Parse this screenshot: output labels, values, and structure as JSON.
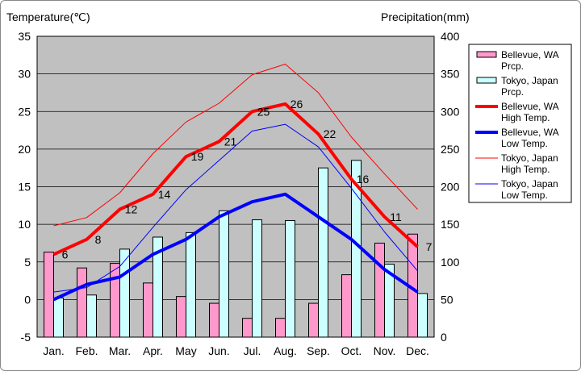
{
  "chart_data": {
    "type": "bar+line",
    "left_axis_title": "Temperature(℃)",
    "right_axis_title": "Precipitation(mm)",
    "categories": [
      "Jan.",
      "Feb.",
      "Mar.",
      "Apr.",
      "May",
      "Jun.",
      "Jul.",
      "Aug.",
      "Sep.",
      "Oct.",
      "Nov.",
      "Dec."
    ],
    "temp_ylim": [
      -5,
      35
    ],
    "temp_ticks": [
      "-5",
      "0",
      "5",
      "10",
      "15",
      "20",
      "25",
      "30",
      "35"
    ],
    "precip_ylim": [
      0,
      400
    ],
    "precip_ticks": [
      "0",
      "50",
      "100",
      "150",
      "200",
      "250",
      "300",
      "350",
      "400"
    ],
    "bar_series": [
      {
        "name": "Bellevue, WA Prcp.",
        "color": "#ff99cc",
        "values": [
          113,
          92,
          98,
          72,
          54,
          45,
          25,
          25,
          45,
          83,
          125,
          137
        ]
      },
      {
        "name": "Tokyo, Japan Prcp.",
        "color": "#ccffff",
        "values": [
          52,
          56,
          117,
          133,
          139,
          168,
          156,
          155,
          225,
          235,
          97,
          58
        ]
      }
    ],
    "line_series": [
      {
        "name": "Bellevue, WA High Temp.",
        "color": "#ff0000",
        "width": "thick",
        "values": [
          6,
          8,
          12,
          14,
          19,
          21,
          25,
          26,
          22,
          16,
          11,
          7
        ]
      },
      {
        "name": "Bellevue, WA Low Temp.",
        "color": "#0000ff",
        "width": "thick",
        "values": [
          0,
          2,
          3,
          6,
          8,
          11,
          13,
          14,
          11,
          8,
          4,
          1
        ]
      },
      {
        "name": "Tokyo, Japan High Temp.",
        "color": "#ff0000",
        "width": "thin",
        "values": [
          9.8,
          10.9,
          14.2,
          19.4,
          23.6,
          26.1,
          29.9,
          31.3,
          27.5,
          21.6,
          16.7,
          12.0
        ]
      },
      {
        "name": "Tokyo, Japan Low Temp.",
        "color": "#0000ff",
        "width": "thin",
        "values": [
          1.0,
          1.6,
          4.4,
          9.6,
          14.6,
          18.5,
          22.4,
          23.3,
          20.3,
          14.8,
          9.0,
          3.8
        ]
      }
    ],
    "data_labels_series": "Bellevue, WA High Temp.",
    "data_labels": [
      "6",
      "8",
      "12",
      "14",
      "19",
      "21",
      "25",
      "26",
      "22",
      "16",
      "11",
      "7"
    ],
    "legend": [
      {
        "line1": "Bellevue, WA",
        "line2": "Prcp.",
        "kind": "bar",
        "color": "#ff99cc"
      },
      {
        "line1": "Tokyo, Japan",
        "line2": "Prcp.",
        "kind": "bar",
        "color": "#ccffff"
      },
      {
        "line1": "Bellevue, WA",
        "line2": "High Temp.",
        "kind": "line",
        "color": "#ff0000",
        "width": "thick"
      },
      {
        "line1": "Bellevue, WA",
        "line2": "Low Temp.",
        "kind": "line",
        "color": "#0000ff",
        "width": "thick"
      },
      {
        "line1": "Tokyo, Japan",
        "line2": "High Temp.",
        "kind": "line",
        "color": "#ff0000",
        "width": "thin"
      },
      {
        "line1": "Tokyo, Japan",
        "line2": "Low Temp.",
        "kind": "line",
        "color": "#0000ff",
        "width": "thin"
      }
    ],
    "plot_background": "#c0c0c0",
    "gridlines": true,
    "legend_position": "right"
  }
}
